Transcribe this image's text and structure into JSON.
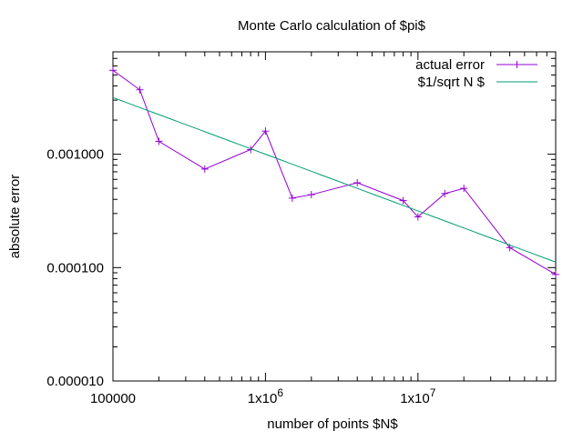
{
  "chart_data": {
    "type": "line",
    "title": "Monte Carlo calculation of $pi$",
    "xlabel": "number of points $N$",
    "ylabel": "absolute error",
    "x_scale": "log",
    "y_scale": "log",
    "xlim": [
      100000,
      80000000
    ],
    "ylim": [
      1e-05,
      0.008
    ],
    "grid": false,
    "legend_position": "top-right",
    "x_ticks": [
      {
        "value": 100000,
        "label": "100000"
      },
      {
        "value": 1000000,
        "label": "1x10",
        "exp": "6"
      },
      {
        "value": 10000000,
        "label": "1x10",
        "exp": "7"
      }
    ],
    "y_ticks": [
      {
        "value": 1e-05,
        "label": "0.000010"
      },
      {
        "value": 0.0001,
        "label": "0.000100"
      },
      {
        "value": 0.001,
        "label": "0.001000"
      }
    ],
    "series": [
      {
        "name": "actual error",
        "color": "#9400d3",
        "marker": "plus",
        "x": [
          100000,
          150000,
          200000,
          400000,
          800000,
          1000000,
          1500000,
          2000000,
          4000000,
          8000000,
          10000000,
          15000000,
          20000000,
          40000000,
          80000000
        ],
        "y": [
          0.0055,
          0.0037,
          0.0013,
          0.00074,
          0.0011,
          0.0016,
          0.00041,
          0.00044,
          0.00056,
          0.00039,
          0.00028,
          0.00045,
          0.0005,
          0.00015,
          8.7e-05
        ]
      },
      {
        "name": "$1/sqrt N $",
        "color": "#009e73",
        "marker": "none",
        "function": "1/sqrt(N)",
        "x_range": [
          100000,
          80000000
        ]
      }
    ]
  }
}
